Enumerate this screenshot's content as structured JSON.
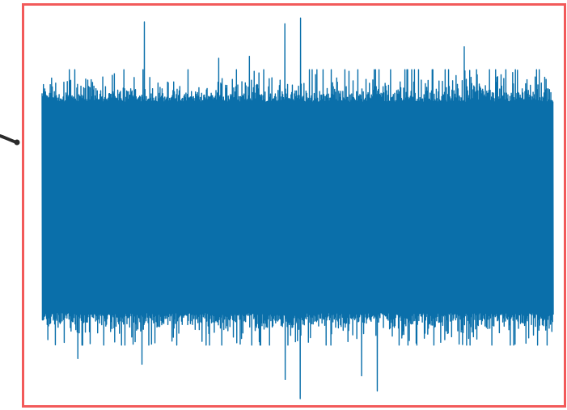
{
  "colors": {
    "frame": "#f25a5a",
    "signal": "#0a6faa",
    "connector": "#2b2b2b",
    "background": "#ffffff"
  },
  "icons": {
    "left_connector": "arrow-tip-icon"
  },
  "chart_data": {
    "type": "line",
    "title": "",
    "xlabel": "",
    "ylabel": "",
    "axes_visible": false,
    "grid": false,
    "legend": "none",
    "sample_count": 1500,
    "ylim": [
      -1.0,
      1.0
    ],
    "series": [
      {
        "style": "dense-oscillating-noise",
        "body_amplitude": 0.55,
        "typical_peak": 0.68,
        "upper_spikes": [
          {
            "x_frac": 0.2,
            "value": 0.97
          },
          {
            "x_frac": 0.475,
            "value": 0.96
          },
          {
            "x_frac": 0.505,
            "value": 0.99
          },
          {
            "x_frac": 0.825,
            "value": 0.84
          },
          {
            "x_frac": 0.405,
            "value": 0.79
          },
          {
            "x_frac": 0.345,
            "value": 0.78
          }
        ],
        "lower_spikes": [
          {
            "x_frac": 0.505,
            "value": -1.0
          },
          {
            "x_frac": 0.655,
            "value": -0.96
          },
          {
            "x_frac": 0.625,
            "value": -0.88
          },
          {
            "x_frac": 0.475,
            "value": -0.9
          },
          {
            "x_frac": 0.195,
            "value": -0.82
          },
          {
            "x_frac": 0.07,
            "value": -0.79
          }
        ]
      }
    ]
  }
}
